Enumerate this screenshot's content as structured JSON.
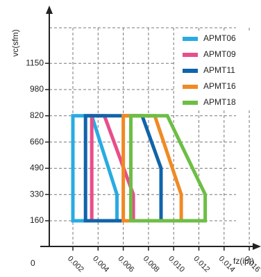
{
  "chart_data": {
    "type": "area",
    "title": "",
    "xlabel": "fz(ipt)",
    "ylabel": "vc(sfm)",
    "origin_label": "0",
    "x_ticks": [
      0.002,
      0.004,
      0.006,
      0.008,
      0.01,
      0.012,
      0.014,
      0.016
    ],
    "x_tick_labels": [
      "0.002",
      "0.004",
      "0.006",
      "0.008",
      "0.010",
      "0.012",
      "0.014",
      "0.016"
    ],
    "y_ticks": [
      160,
      330,
      490,
      660,
      820,
      980,
      1150
    ],
    "y_tick_labels": [
      "160",
      "330",
      "490",
      "660",
      "820",
      "980",
      "1150"
    ],
    "grid": true,
    "legend_position": "top-right",
    "series": [
      {
        "name": "APMT06",
        "color": "#29ABE2",
        "points": [
          [
            0.002,
            160
          ],
          [
            0.002,
            820
          ],
          [
            0.0035,
            820
          ],
          [
            0.0055,
            330
          ],
          [
            0.0055,
            160
          ]
        ]
      },
      {
        "name": "APMT09",
        "color": "#E84E8A",
        "points": [
          [
            0.0035,
            160
          ],
          [
            0.0035,
            820
          ],
          [
            0.0045,
            820
          ],
          [
            0.0068,
            330
          ],
          [
            0.0068,
            160
          ]
        ]
      },
      {
        "name": "APMT11",
        "color": "#1064AA",
        "points": [
          [
            0.003,
            160
          ],
          [
            0.003,
            820
          ],
          [
            0.0075,
            820
          ],
          [
            0.009,
            490
          ],
          [
            0.009,
            160
          ]
        ]
      },
      {
        "name": "APMT16",
        "color": "#F08A24",
        "points": [
          [
            0.006,
            160
          ],
          [
            0.006,
            820
          ],
          [
            0.0085,
            820
          ],
          [
            0.0106,
            330
          ],
          [
            0.0106,
            160
          ]
        ]
      },
      {
        "name": "APMT18",
        "color": "#6DBE45",
        "points": [
          [
            0.0066,
            160
          ],
          [
            0.0066,
            820
          ],
          [
            0.0095,
            820
          ],
          [
            0.0125,
            330
          ],
          [
            0.0125,
            160
          ]
        ]
      }
    ]
  }
}
